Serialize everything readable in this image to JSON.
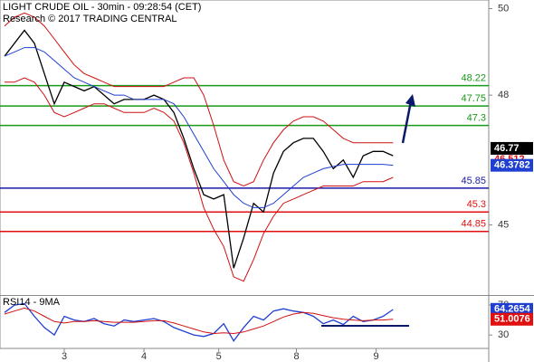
{
  "chart_data": [
    {
      "type": "line",
      "title": "LIGHT CRUDE OIL - 30min - 09:28:54 (CET)",
      "subtitle": "Research © 2017 TRADING CENTRAL",
      "x": [
        0,
        1,
        2,
        3,
        4,
        5,
        6,
        7,
        8,
        9,
        10,
        11,
        12,
        13,
        14,
        15,
        16,
        17,
        18,
        19,
        20,
        21,
        22,
        23,
        24,
        25,
        26,
        27,
        28,
        29,
        30,
        31,
        32,
        33,
        34,
        35,
        36,
        37,
        38,
        39
      ],
      "xlim": [
        -0.45,
        48.6
      ],
      "xticks": [
        {
          "value": 6,
          "label": "3"
        },
        {
          "value": 14,
          "label": "4"
        },
        {
          "value": 21.5,
          "label": "5"
        },
        {
          "value": 29.3,
          "label": "8"
        },
        {
          "value": 37.3,
          "label": "9"
        }
      ],
      "ylim": [
        43.4,
        50.2
      ],
      "yticks": [
        45,
        48,
        50
      ],
      "series": [
        {
          "color": "#000000",
          "values": [
            48.9,
            49.2,
            49.5,
            49.2,
            48.5,
            47.8,
            48.3,
            48.2,
            48.1,
            48.2,
            48.0,
            47.8,
            47.9,
            47.9,
            47.9,
            48.0,
            47.9,
            47.6,
            47.0,
            46.3,
            45.7,
            45.6,
            45.7,
            44.0,
            44.7,
            45.5,
            45.3,
            46.2,
            46.7,
            46.9,
            47.0,
            47.0,
            46.7,
            46.3,
            46.5,
            46.1,
            46.6,
            46.7,
            46.7,
            46.6
          ]
        },
        {
          "color": "#1f3fd0",
          "values": [
            48.9,
            49.0,
            49.1,
            49.1,
            49.0,
            48.8,
            48.6,
            48.4,
            48.3,
            48.2,
            48.1,
            48.0,
            48.0,
            47.9,
            47.9,
            47.9,
            47.9,
            47.8,
            47.5,
            47.1,
            46.7,
            46.3,
            46.0,
            45.7,
            45.5,
            45.4,
            45.4,
            45.5,
            45.7,
            45.9,
            46.1,
            46.2,
            46.3,
            46.35,
            46.4,
            46.4,
            46.4,
            46.4,
            46.4,
            46.38
          ]
        },
        {
          "color": "#d01010",
          "values": [
            49.6,
            49.8,
            49.9,
            49.8,
            49.6,
            49.3,
            49.0,
            48.7,
            48.5,
            48.4,
            48.3,
            48.2,
            48.2,
            48.2,
            48.2,
            48.2,
            48.2,
            48.3,
            48.4,
            48.4,
            48.0,
            47.3,
            46.5,
            46.0,
            45.9,
            46.0,
            46.5,
            46.9,
            47.2,
            47.4,
            47.5,
            47.5,
            47.4,
            47.2,
            47.0,
            46.9,
            46.9,
            46.9,
            46.9,
            46.9
          ]
        },
        {
          "color": "#d01010",
          "values": [
            48.3,
            48.3,
            48.4,
            48.3,
            48.0,
            47.6,
            47.5,
            47.6,
            47.7,
            47.8,
            47.8,
            47.7,
            47.6,
            47.6,
            47.6,
            47.7,
            47.6,
            47.4,
            46.9,
            46.2,
            45.4,
            44.9,
            44.5,
            43.8,
            43.7,
            44.2,
            44.8,
            45.2,
            45.5,
            45.6,
            45.7,
            45.8,
            45.9,
            45.9,
            45.9,
            45.9,
            46.0,
            46.0,
            46.0,
            46.1
          ]
        }
      ],
      "levels": [
        {
          "value": 48.22,
          "color": "#1a9a1a"
        },
        {
          "value": 47.75,
          "color": "#1a9a1a"
        },
        {
          "value": 47.3,
          "color": "#1a9a1a"
        },
        {
          "value": 45.85,
          "color": "#1a1aa8"
        },
        {
          "value": 45.3,
          "color": "#e01010"
        },
        {
          "value": 44.85,
          "color": "#e01010"
        }
      ],
      "markers": [
        {
          "value": 46.77,
          "color": "#000000",
          "boxed": true
        },
        {
          "value": 46.512,
          "color": "#e01010",
          "boxed": false
        },
        {
          "value": 46.3782,
          "color": "#1f3fd0",
          "boxed": true
        }
      ]
    },
    {
      "type": "line",
      "title": "RSI14 - 9MA",
      "x": [
        0,
        1,
        2,
        3,
        4,
        5,
        6,
        7,
        8,
        9,
        10,
        11,
        12,
        13,
        14,
        15,
        16,
        17,
        18,
        19,
        20,
        21,
        22,
        23,
        24,
        25,
        26,
        27,
        28,
        29,
        30,
        31,
        32,
        33,
        34,
        35,
        36,
        37,
        38,
        39
      ],
      "xlim": [
        -0.45,
        48.6
      ],
      "ylim": [
        12,
        81
      ],
      "yticks": [
        30,
        70
      ],
      "series": [
        {
          "color": "#1f3fd0",
          "values": [
            60,
            70,
            72,
            55,
            40,
            30,
            55,
            50,
            48,
            52,
            45,
            42,
            50,
            48,
            50,
            52,
            48,
            40,
            35,
            30,
            28,
            32,
            45,
            22,
            40,
            55,
            50,
            62,
            65,
            62,
            60,
            55,
            45,
            50,
            44,
            55,
            48,
            50,
            55,
            64
          ]
        },
        {
          "color": "#d01010",
          "values": [
            58,
            62,
            66,
            62,
            55,
            48,
            46,
            48,
            48,
            49,
            48,
            47,
            47,
            47,
            48,
            49,
            49,
            46,
            42,
            38,
            34,
            32,
            33,
            32,
            34,
            38,
            42,
            48,
            54,
            58,
            60,
            59,
            56,
            53,
            51,
            50,
            49,
            50,
            50,
            51
          ]
        }
      ],
      "markers": [
        {
          "value": 64.2654,
          "color": "#1f3fd0",
          "boxed": true
        },
        {
          "value": 51.0076,
          "color": "#e01010",
          "boxed": true
        }
      ]
    }
  ]
}
